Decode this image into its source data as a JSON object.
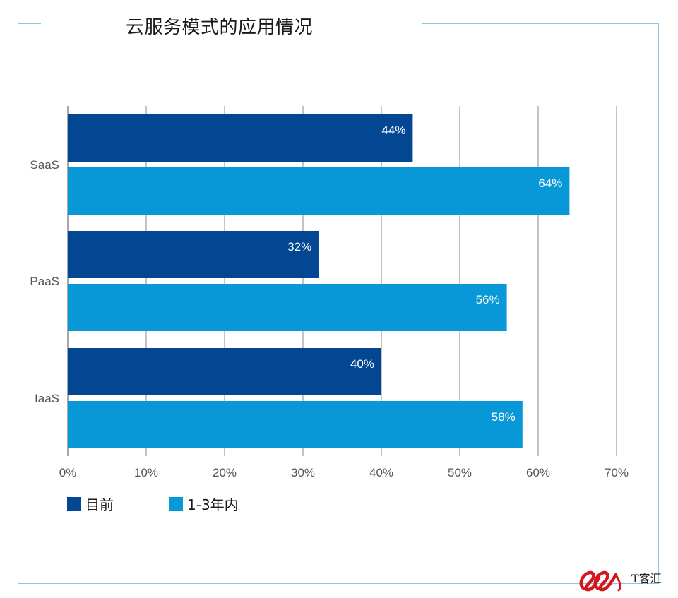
{
  "title": "云服务模式的应用情况",
  "colors": {
    "current": "#034692",
    "future": "#0898d8",
    "grid": "#8a8a8a",
    "frame": "#8fc7dc",
    "tick_text": "#555555",
    "watermark_red": "#d4171d"
  },
  "legend": {
    "items": [
      {
        "label": "目前"
      },
      {
        "label": "1-3年内"
      }
    ]
  },
  "watermark": {
    "logo_icon": "it-logo-icon",
    "text": "T客汇"
  },
  "chart_data": {
    "type": "bar",
    "orientation": "horizontal",
    "categories": [
      "SaaS",
      "PaaS",
      "IaaS"
    ],
    "series": [
      {
        "name": "目前",
        "values": [
          44,
          32,
          40
        ],
        "labels": [
          "44%",
          "32%",
          "40%"
        ]
      },
      {
        "name": "1-3年内",
        "values": [
          64,
          56,
          58
        ],
        "labels": [
          "64%",
          "56%",
          "58%"
        ]
      }
    ],
    "xlim": [
      0,
      70
    ],
    "xticks": [
      0,
      10,
      20,
      30,
      40,
      50,
      60,
      70
    ],
    "xtick_labels": [
      "0%",
      "10%",
      "20%",
      "30%",
      "40%",
      "50%",
      "60%",
      "70%"
    ],
    "grid": true,
    "legend_position": "bottom-left"
  }
}
